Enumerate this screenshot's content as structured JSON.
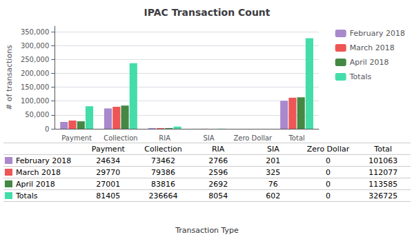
{
  "chart_data": {
    "type": "bar",
    "title": "IPAC Transaction Count",
    "xlabel": "Transaction Type",
    "ylabel": "# of transactions",
    "categories": [
      "Payment",
      "Collection",
      "RIA",
      "SIA",
      "Zero Dollar",
      "Total"
    ],
    "series": [
      {
        "name": "February 2018",
        "color": "#AA88CC",
        "values": [
          24634,
          73462,
          2766,
          201,
          0,
          101063
        ]
      },
      {
        "name": "March 2018",
        "color": "#EE5555",
        "values": [
          29770,
          79386,
          2596,
          325,
          0,
          112077
        ]
      },
      {
        "name": "April 2018",
        "color": "#448844",
        "values": [
          27001,
          83816,
          2692,
          76,
          0,
          113585
        ]
      },
      {
        "name": "Totals",
        "color": "#44DDAA",
        "values": [
          81405,
          236664,
          8054,
          602,
          0,
          326725
        ]
      }
    ],
    "ylim": [
      0,
      370000
    ],
    "yticks": [
      0,
      {
        "value": 50000,
        "label": "50,000"
      },
      {
        "value": 100000,
        "label": "100,000"
      },
      {
        "value": 150000,
        "label": "150,000"
      },
      {
        "value": 200000,
        "label": "200,000"
      },
      {
        "value": 250000,
        "label": "250,000"
      },
      {
        "value": 300000,
        "label": "300,000"
      },
      {
        "value": 350000,
        "label": "350,000"
      }
    ],
    "grid": true,
    "legend": "right"
  }
}
